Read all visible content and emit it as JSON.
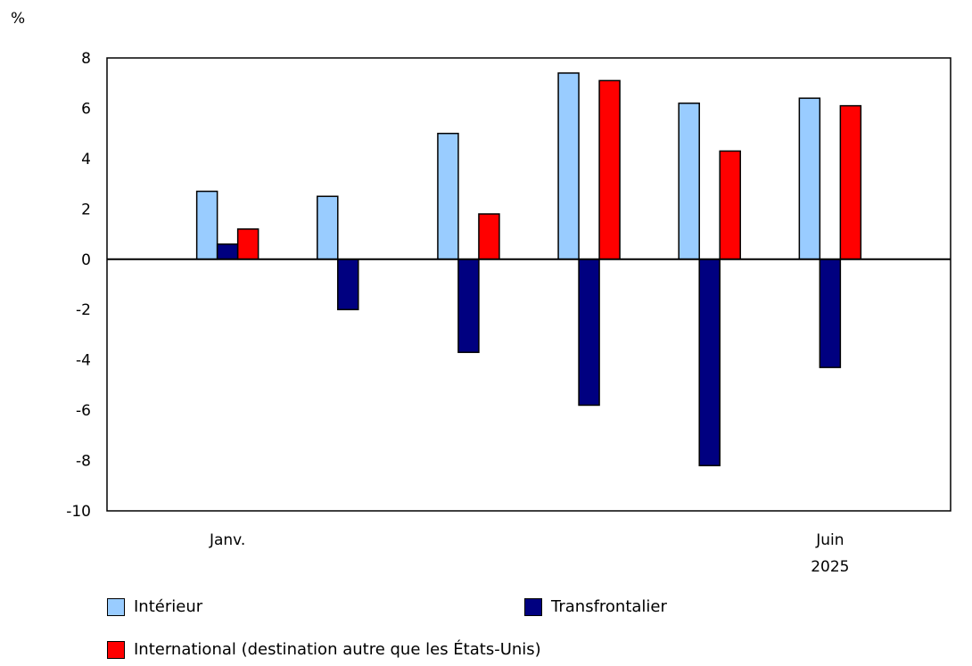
{
  "chart_data": {
    "type": "bar",
    "ylabel": "%",
    "ylim": [
      -10,
      8
    ],
    "yticks": [
      8,
      6,
      4,
      2,
      0,
      -2,
      -4,
      -6,
      -8,
      -10
    ],
    "categories": [
      "Janv.",
      "",
      "",
      "",
      "",
      "Juin"
    ],
    "year_label": "2025",
    "grid": false,
    "legend_position": "bottom",
    "series": [
      {
        "name": "Intérieur",
        "color": "#99ccff",
        "values": [
          2.7,
          2.5,
          5.0,
          7.4,
          6.2,
          6.4
        ]
      },
      {
        "name": "Transfrontalier",
        "color": "#000080",
        "values": [
          0.6,
          -2.0,
          -3.7,
          -5.8,
          -8.2,
          -4.3
        ]
      },
      {
        "name": "International (destination autre que les États-Unis)",
        "color": "#ff0000",
        "values": [
          1.2,
          0.0,
          1.8,
          7.1,
          4.3,
          6.1
        ]
      }
    ]
  }
}
